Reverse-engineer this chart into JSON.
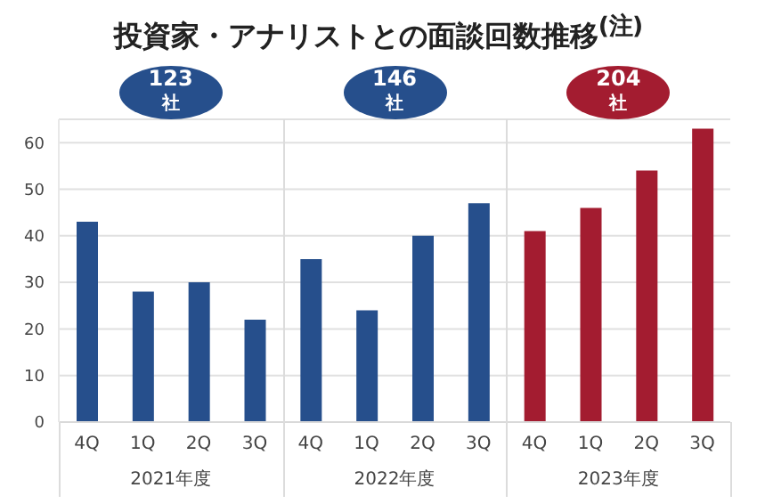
{
  "chart_data": {
    "type": "bar",
    "title": "投資家・アナリストとの面談回数推移$^{(注)}$",
    "categories": [
      "4Q",
      "1Q",
      "2Q",
      "3Q",
      "4Q",
      "1Q",
      "2Q",
      "3Q",
      "4Q",
      "1Q",
      "2Q",
      "3Q"
    ],
    "values": [
      43,
      28,
      30,
      22,
      35,
      24,
      40,
      47,
      41,
      46,
      54,
      63
    ],
    "colors": [
      "#264f8c",
      "#264f8c",
      "#264f8c",
      "#264f8c",
      "#264f8c",
      "#264f8c",
      "#264f8c",
      "#264f8c",
      "#a31c30",
      "#a31c30",
      "#a31c30",
      "#a31c30"
    ],
    "ylim": [
      0,
      65
    ],
    "yticks": [
      0,
      10,
      20,
      30,
      40,
      50,
      60
    ],
    "grid": "y",
    "legend": false,
    "annotations": [
      "123社",
      "146社",
      "204社",
      "2021年度",
      "2022年度",
      "2023年度"
    ]
  }
}
